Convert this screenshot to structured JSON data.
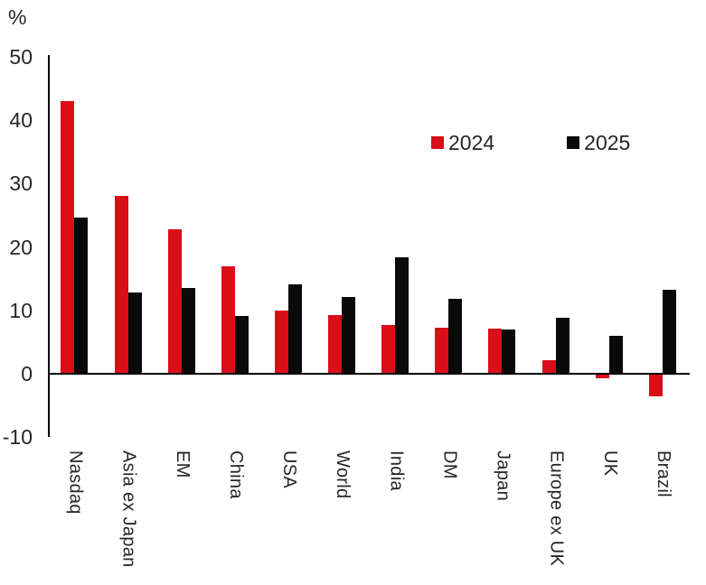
{
  "chart_data": {
    "type": "bar",
    "title": "",
    "unit": "%",
    "categories": [
      "Nasdaq",
      "Asia ex Japan",
      "EM",
      "China",
      "USA",
      "World",
      "India",
      "DM",
      "Japan",
      "Europe ex UK",
      "UK",
      "Brazil"
    ],
    "series": [
      {
        "name": "2024",
        "color": "#d90e19",
        "values": [
          43,
          28,
          22.8,
          16.9,
          10,
          9.3,
          7.7,
          7.3,
          7.1,
          2.1,
          -0.7,
          -3.5
        ]
      },
      {
        "name": "2025",
        "color": "#0a0a0a",
        "values": [
          24.6,
          12.8,
          13.5,
          9.1,
          14.1,
          12.1,
          18.4,
          11.9,
          7,
          8.8,
          6,
          13.3
        ]
      }
    ],
    "y_ticks": [
      50,
      40,
      30,
      20,
      10,
      0,
      -10
    ],
    "ylim": [
      -10,
      50
    ],
    "xlabel": "",
    "ylabel": "%",
    "grid": false,
    "legend_position": "inside-top-right",
    "colors": {
      "axis": "#000000",
      "text": "#262626",
      "background": "#ffffff"
    }
  }
}
